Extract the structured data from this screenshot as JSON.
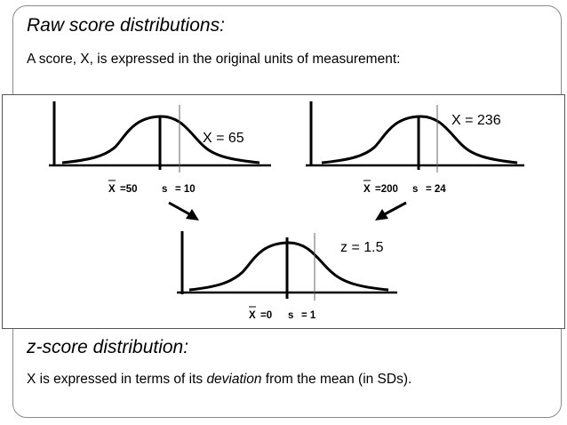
{
  "header": {
    "title": "Raw  score distributions:",
    "subtitle": "A score, X, is expressed in the original units of measurement:"
  },
  "distributions": {
    "left": {
      "mean_label": "X",
      "mean_value": "=50",
      "sd_label": "s",
      "sd_value": "= 10",
      "marker": "X = 65"
    },
    "right": {
      "mean_label": "X",
      "mean_value": "=200",
      "sd_label": "s",
      "sd_value": "= 24",
      "marker": "X = 236"
    },
    "bottom": {
      "mean_label": "X",
      "mean_value": "=0",
      "sd_label": "s",
      "sd_value": "= 1",
      "marker": "z = 1.5"
    }
  },
  "footer": {
    "title": "z-score distribution:",
    "text_before": "X is expressed in terms of its ",
    "text_emphasis": "deviation",
    "text_after": " from the mean (in SDs)."
  },
  "colors": {
    "ink": "#000000",
    "frame": "#8a8a8a",
    "sd_line": "#666666"
  }
}
